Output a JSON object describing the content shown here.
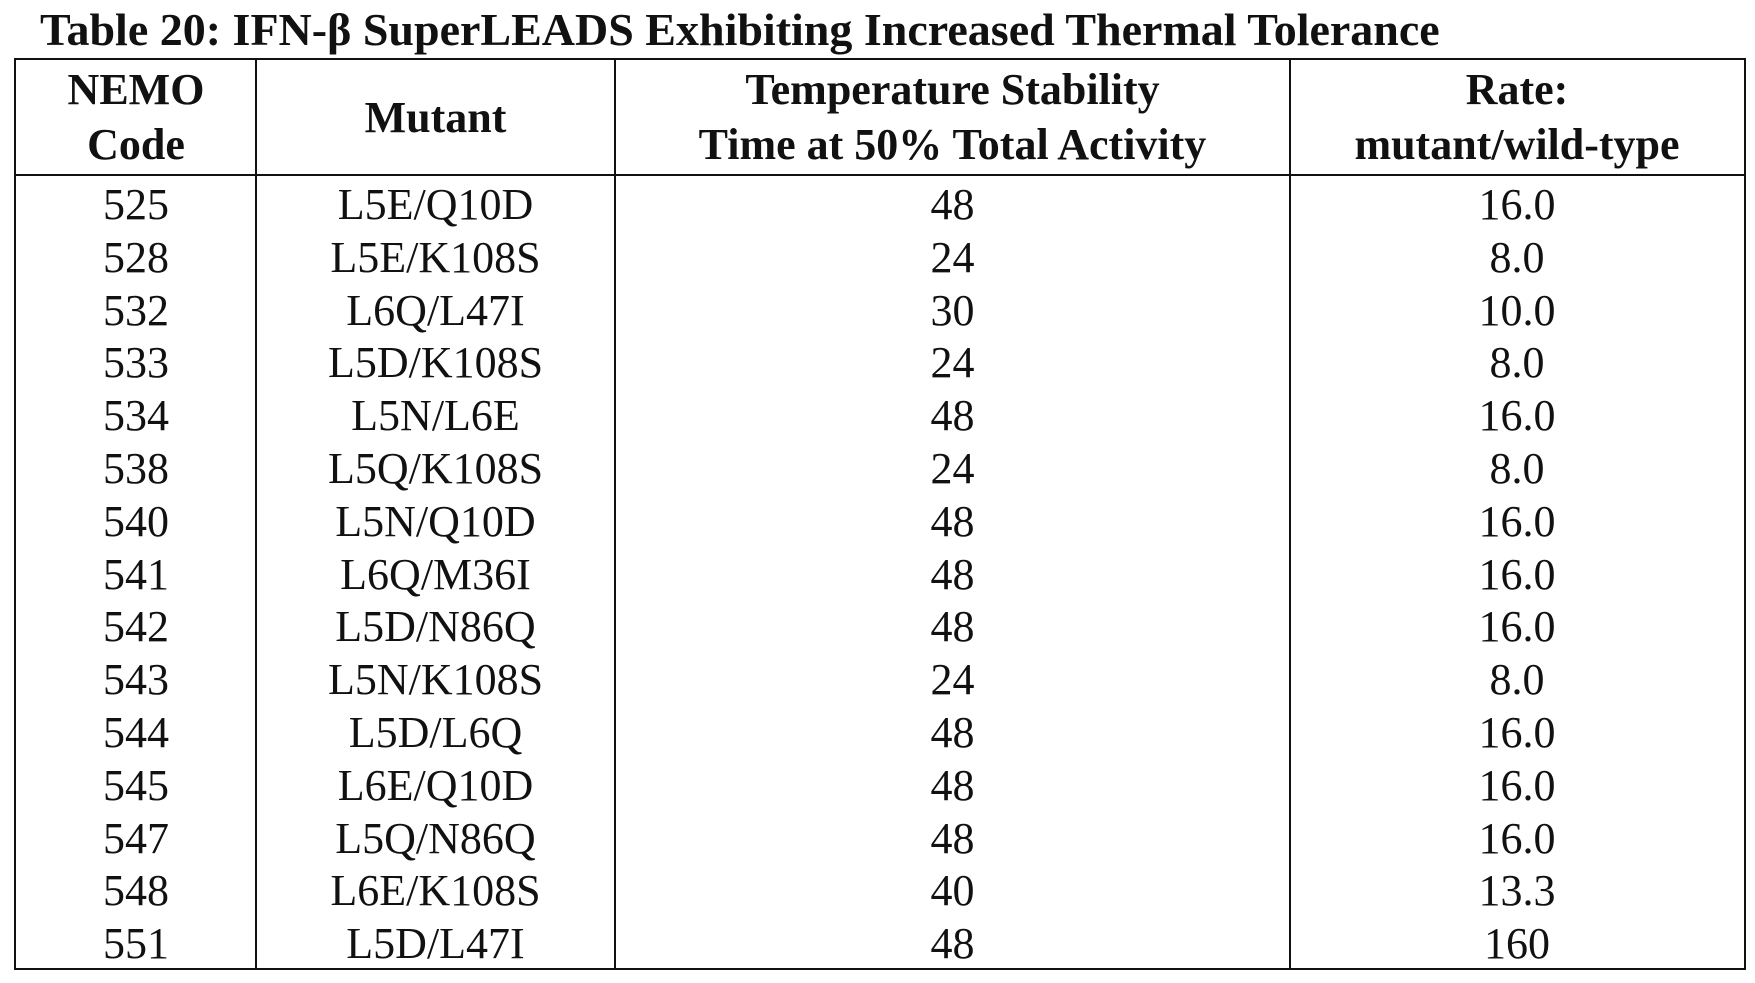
{
  "title": "Table 20: IFN-β SuperLEADS Exhibiting Increased Thermal Tolerance",
  "table": {
    "header": [
      [
        "NEMO",
        "Code"
      ],
      [
        "Mutant"
      ],
      [
        "Temperature Stability",
        "Time at 50% Total Activity"
      ],
      [
        "Rate:",
        "mutant/wild-type"
      ]
    ],
    "rows": [
      [
        "525",
        "L5E/Q10D",
        "48",
        "16.0"
      ],
      [
        "528",
        "L5E/K108S",
        "24",
        "8.0"
      ],
      [
        "532",
        "L6Q/L47I",
        "30",
        "10.0"
      ],
      [
        "533",
        "L5D/K108S",
        "24",
        "8.0"
      ],
      [
        "534",
        "L5N/L6E",
        "48",
        "16.0"
      ],
      [
        "538",
        "L5Q/K108S",
        "24",
        "8.0"
      ],
      [
        "540",
        "L5N/Q10D",
        "48",
        "16.0"
      ],
      [
        "541",
        "L6Q/M36I",
        "48",
        "16.0"
      ],
      [
        "542",
        "L5D/N86Q",
        "48",
        "16.0"
      ],
      [
        "543",
        "L5N/K108S",
        "24",
        "8.0"
      ],
      [
        "544",
        "L5D/L6Q",
        "48",
        "16.0"
      ],
      [
        "545",
        "L6E/Q10D",
        "48",
        "16.0"
      ],
      [
        "547",
        "L5Q/N86Q",
        "48",
        "16.0"
      ],
      [
        "548",
        "L6E/K108S",
        "40",
        "13.3"
      ],
      [
        "551",
        "L5D/L47I",
        "48",
        "160"
      ]
    ]
  }
}
